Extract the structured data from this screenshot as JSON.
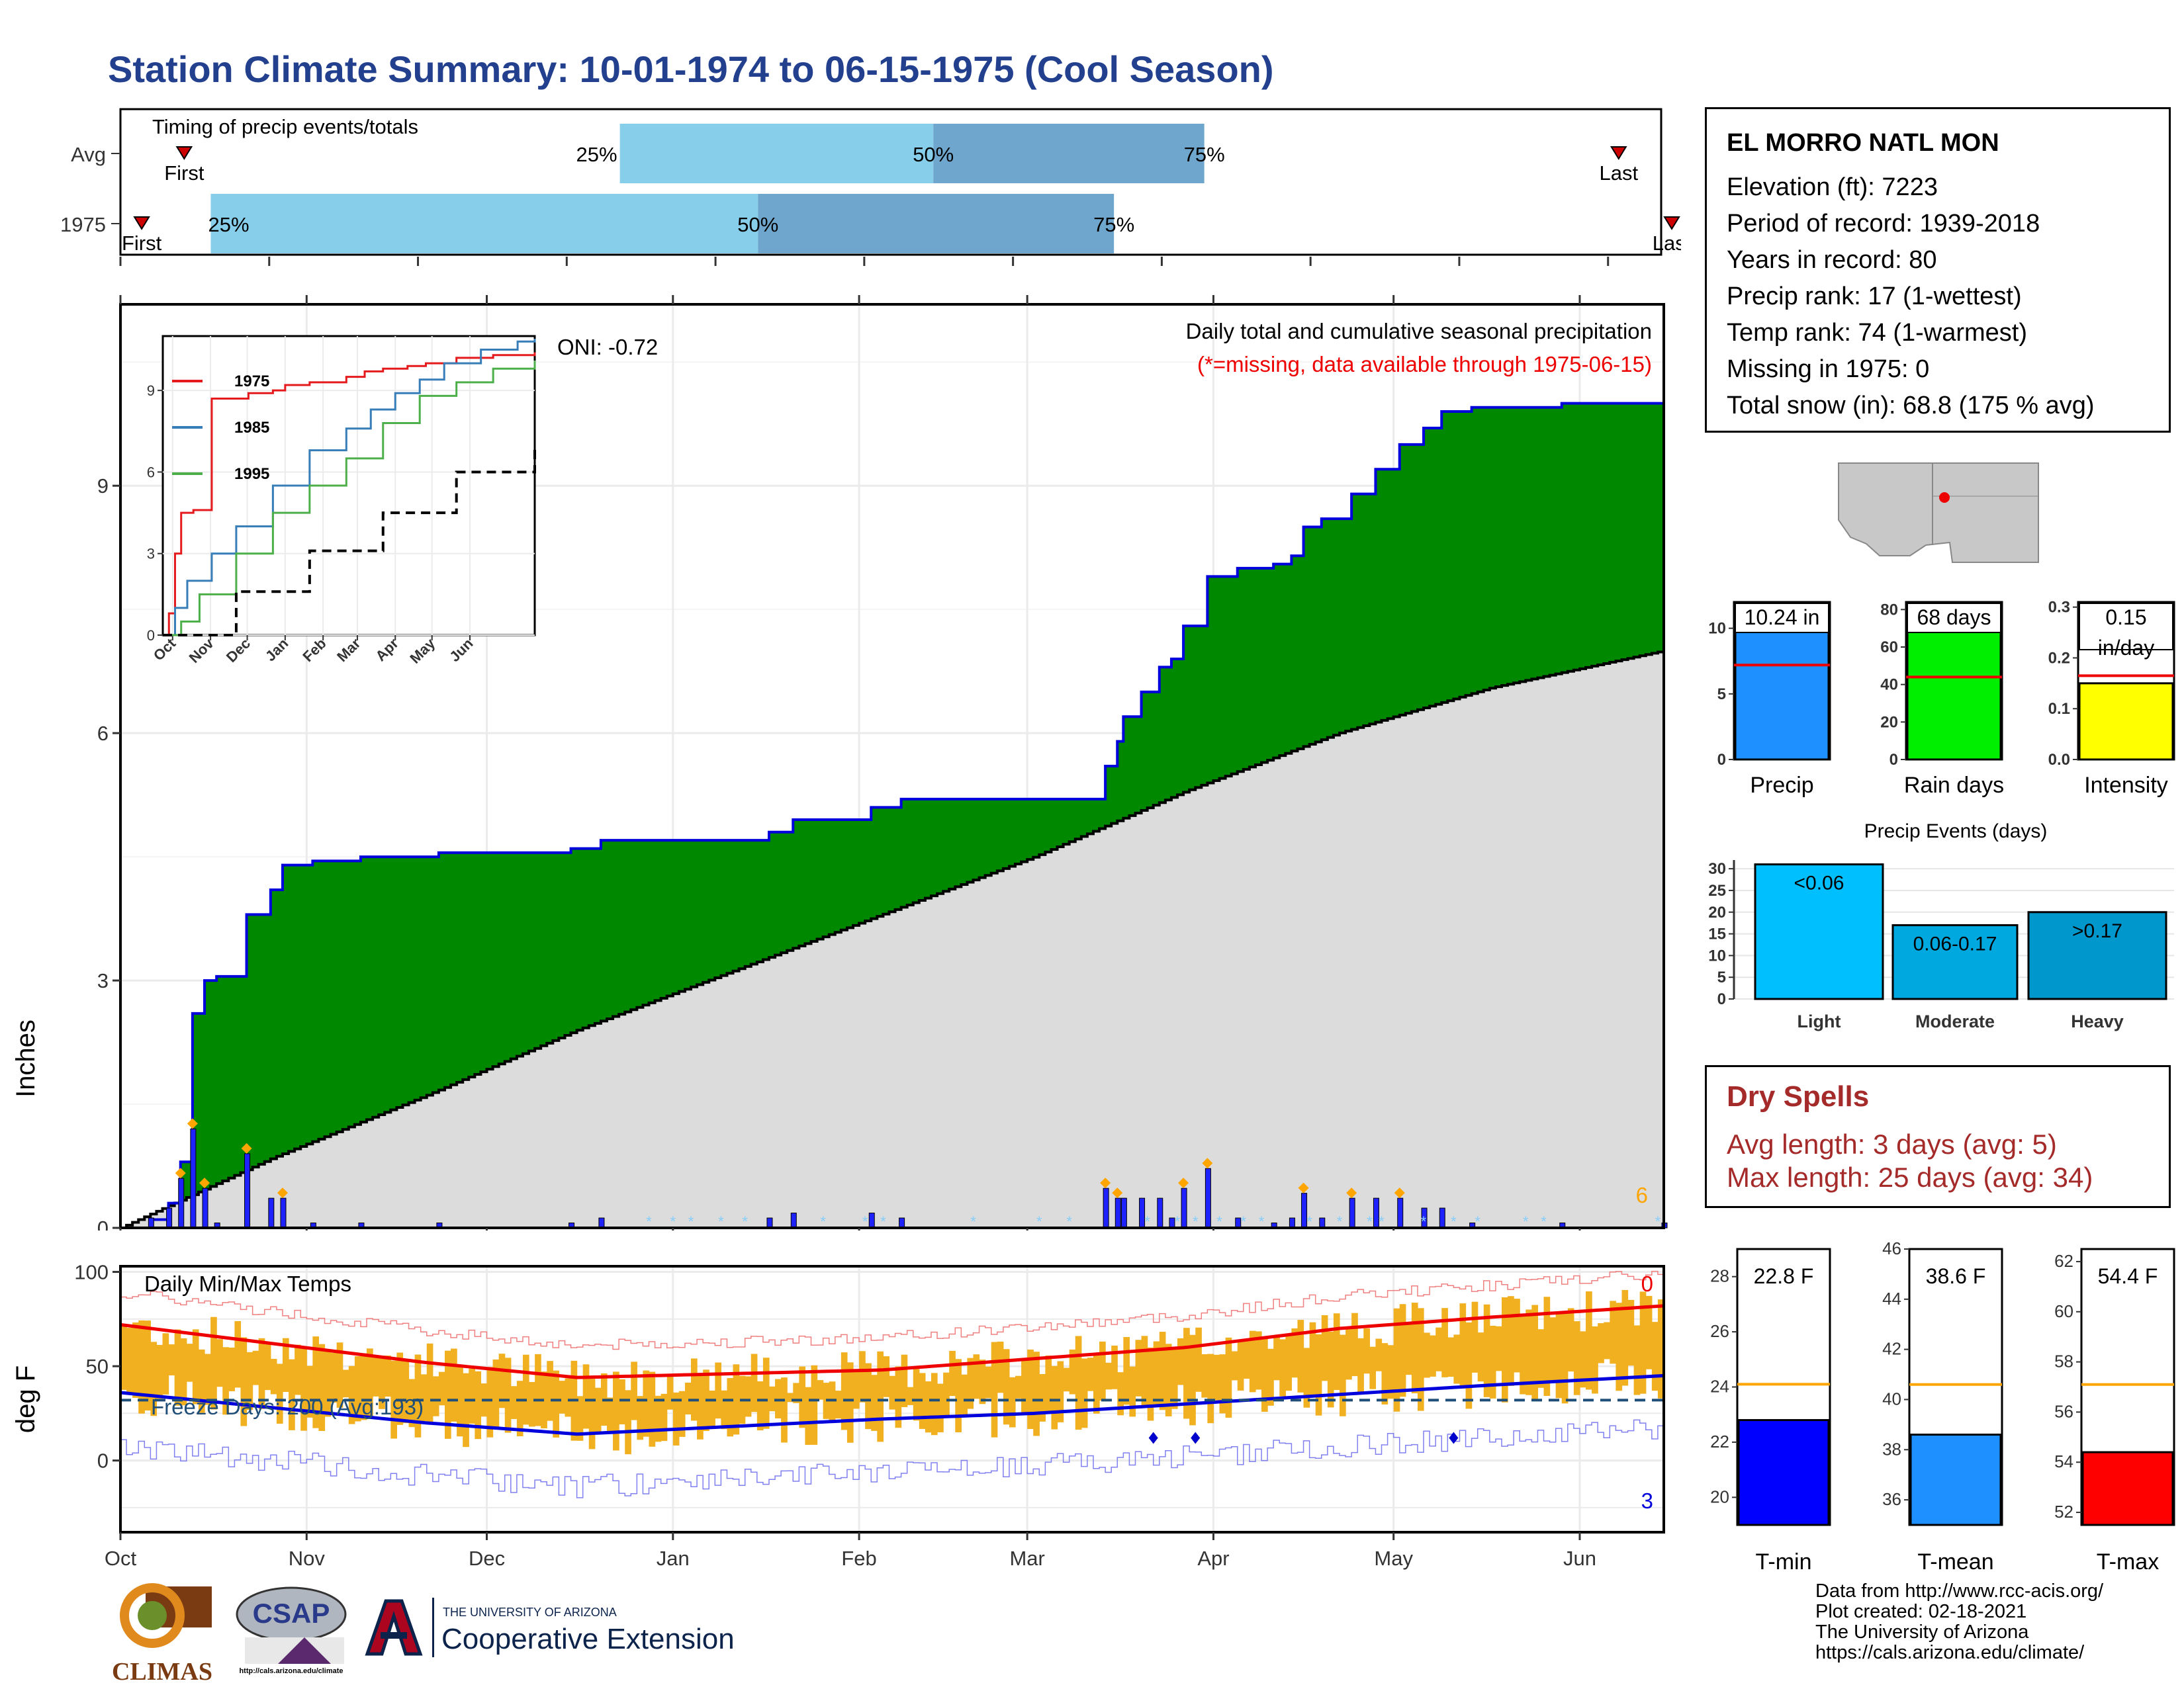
{
  "page": {
    "title": "Station Climate Summary: 10-01-1974 to 06-15-1975 (Cool Season)"
  },
  "timing": {
    "title": "Timing of precip events/totals",
    "rows": [
      {
        "label": "Avg",
        "first": "First",
        "last": "Last",
        "p25": "25%",
        "p50": "50%",
        "p75": "75%",
        "first_doy": 12,
        "p25_doy": 94,
        "p50_doy": 153,
        "p75_doy": 204,
        "last_doy": 282
      },
      {
        "label": "1975",
        "first": "First",
        "last": "Last",
        "p25": "25%",
        "p50": "50%",
        "p75": "75%",
        "first_doy": 4,
        "p25_doy": 17,
        "p50_doy": 120,
        "p75_doy": 187,
        "last_doy": 292
      }
    ],
    "colors": {
      "q1": "#87ceeb",
      "q2": "#6ea6cd",
      "marker": "#cc0000"
    }
  },
  "precip": {
    "ylabel": "Inches",
    "title": "Daily total and cumulative seasonal precipitation",
    "missing_note": "(*=missing, data available through 1975-06-15)",
    "oni": "ONI: -0.72",
    "count_label": "6",
    "yticks": [
      "0",
      "3",
      "6",
      "9"
    ],
    "colors": {
      "fill": "#008800",
      "line": "#0000dd",
      "normal": "#dcdcdc",
      "daily": "#1e22ff",
      "missing": "#87cefa",
      "diamond": "#ffa500"
    }
  },
  "inset": {
    "yticks": [
      "0",
      "3",
      "6",
      "9"
    ],
    "xticks": [
      "Oct",
      "Nov",
      "Dec",
      "Jan",
      "Feb",
      "Mar",
      "Apr",
      "May",
      "Jun"
    ],
    "legend": [
      {
        "name": "1975",
        "color": "#e41a1c"
      },
      {
        "name": "1985",
        "color": "#377eb8"
      },
      {
        "name": "1995",
        "color": "#4daf4a"
      }
    ]
  },
  "temp": {
    "ylabel": "deg F",
    "title": "Daily Min/Max Temps",
    "freeze": "Freeze Days: 200 (Avg:193)",
    "top_count": "0",
    "bottom_count": "3",
    "yticks": [
      "0",
      "50",
      "100"
    ],
    "xticks": [
      "Oct",
      "Nov",
      "Dec",
      "Jan",
      "Feb",
      "Mar",
      "Apr",
      "May",
      "Jun"
    ],
    "colors": {
      "bar": "#f0b020",
      "max": "#ee0000",
      "min": "#0000dd",
      "freeze": "#1f4e79"
    }
  },
  "station": {
    "name": "EL MORRO NATL MON",
    "lines": [
      "Elevation (ft): 7223",
      "Period of record: 1939-2018",
      "Years in record: 80",
      "Precip rank: 17 (1-wettest)",
      "Temp rank: 74 (1-warmest)",
      "Missing in 1975: 0",
      "Total snow (in): 68.8 (175 % avg)"
    ]
  },
  "summary_bars": [
    {
      "label": "Precip",
      "value_text": "10.24 in",
      "value": 10.24,
      "avg": 7.2,
      "ymax": 12,
      "ticks": [
        "0",
        "5",
        "10"
      ],
      "tickvals": [
        0,
        5,
        10
      ],
      "color": "#1e90ff"
    },
    {
      "label": "Rain days",
      "value_text": "68 days",
      "value": 68,
      "avg": 44,
      "ymax": 84,
      "ticks": [
        "0",
        "20",
        "40",
        "60",
        "80"
      ],
      "tickvals": [
        0,
        20,
        40,
        60,
        80
      ],
      "color": "#00ee00"
    },
    {
      "label": "Intensity",
      "value_text": "0.15",
      "value_text2": "in/day",
      "value": 0.15,
      "avg": 0.165,
      "ymax": 0.31,
      "ticks": [
        "0.0",
        "0.1",
        "0.2",
        "0.3"
      ],
      "tickvals": [
        0,
        0.1,
        0.2,
        0.3
      ],
      "color": "#ffff00"
    }
  ],
  "events": {
    "title": "Precip Events (days)",
    "ticks": [
      "0",
      "5",
      "10",
      "15",
      "20",
      "25",
      "30"
    ],
    "bars": [
      {
        "label": "Light",
        "range": "<0.06",
        "value": 31,
        "color": "#00bfff"
      },
      {
        "label": "Moderate",
        "range": "0.06-0.17",
        "value": 17,
        "color": "#00a8e0"
      },
      {
        "label": "Heavy",
        "range": ">0.17",
        "value": 20,
        "color": "#0098cc"
      }
    ]
  },
  "dry_spells": {
    "title": "Dry Spells",
    "avg": "Avg length: 3 days (avg: 5)",
    "max": "Max length: 25 days (avg: 34)"
  },
  "temp_bars": [
    {
      "label": "T-min",
      "value_text": "22.8 F",
      "value": 22.8,
      "avg": 24.1,
      "ymin": 19,
      "ymax": 29,
      "ticks": [
        "20",
        "22",
        "24",
        "26",
        "28"
      ],
      "tickvals": [
        20,
        22,
        24,
        26,
        28
      ],
      "color": "#0000ff"
    },
    {
      "label": "T-mean",
      "value_text": "38.6 F",
      "value": 38.6,
      "avg": 40.6,
      "ymin": 35,
      "ymax": 46,
      "ticks": [
        "36",
        "38",
        "40",
        "42",
        "44",
        "46"
      ],
      "tickvals": [
        36,
        38,
        40,
        42,
        44,
        46
      ],
      "color": "#1e90ff"
    },
    {
      "label": "T-max",
      "value_text": "54.4 F",
      "value": 54.4,
      "avg": 57.1,
      "ymin": 51.5,
      "ymax": 62.5,
      "ticks": [
        "52",
        "54",
        "56",
        "58",
        "60",
        "62"
      ],
      "tickvals": [
        52,
        54,
        56,
        58,
        60,
        62
      ],
      "color": "#ff0000"
    }
  ],
  "footer": {
    "logo_climas": "CLIMAS",
    "logo_csap": "CSAP",
    "csap_url": "http://cals.arizona.edu/climate",
    "ua_top": "THE UNIVERSITY OF ARIZONA",
    "ua_bottom": "Cooperative Extension",
    "credits": [
      "Data from http://www.rcc-acis.org/",
      "Plot created: 02-18-2021",
      "The University of Arizona",
      "https://cals.arizona.edu/climate/"
    ]
  },
  "chart_data": [
    {
      "type": "area",
      "title": "Daily total and cumulative seasonal precipitation",
      "ylabel": "Inches",
      "ylim": [
        0,
        11.2
      ],
      "x_axis": [
        "Oct",
        "Nov",
        "Dec",
        "Jan",
        "Feb",
        "Mar",
        "Apr",
        "May",
        "Jun"
      ],
      "series": [
        {
          "name": "1975",
          "x_day": [
            0,
            5,
            8,
            10,
            12,
            14,
            16,
            18,
            21,
            25,
            27,
            32,
            40,
            53,
            75,
            80,
            108,
            112,
            125,
            130,
            164,
            166,
            167,
            170,
            173,
            175,
            177,
            181,
            186,
            192,
            195,
            197,
            200,
            205,
            209,
            213,
            217,
            220,
            225,
            240,
            257,
            285,
            290,
            300,
            304
          ],
          "values": [
            0,
            0.1,
            0.3,
            0.8,
            2.6,
            3.0,
            3.05,
            3.05,
            3.8,
            4.1,
            4.4,
            4.45,
            4.5,
            4.55,
            4.6,
            4.7,
            4.8,
            4.95,
            5.1,
            5.2,
            5.6,
            5.9,
            6.2,
            6.5,
            6.8,
            6.9,
            7.3,
            7.9,
            8.0,
            8.05,
            8.15,
            8.5,
            8.6,
            8.9,
            9.2,
            9.5,
            9.7,
            9.9,
            9.95,
            10.0,
            10.05,
            10.1,
            10.15,
            10.24,
            10.24
          ]
        },
        {
          "name": "Normal",
          "x_day": [
            0,
            30,
            60,
            90,
            120,
            150,
            180,
            210,
            240,
            270,
            304
          ],
          "values": [
            0,
            0.85,
            1.6,
            2.4,
            3.1,
            3.8,
            4.5,
            5.3,
            6.0,
            6.55,
            7.0
          ]
        }
      ]
    },
    {
      "type": "line",
      "title": "",
      "x_axis": [
        "Oct",
        "Nov",
        "Dec",
        "Jan",
        "Feb",
        "Mar",
        "Apr",
        "May",
        "Jun"
      ],
      "ylim": [
        0,
        11
      ],
      "series": [
        {
          "name": "1975",
          "x_day": [
            0,
            5,
            10,
            15,
            25,
            40,
            70,
            90,
            100,
            120,
            150,
            165,
            180,
            200,
            215,
            240,
            270,
            304
          ],
          "values": [
            0,
            0.8,
            3.0,
            4.5,
            4.6,
            8.7,
            8.9,
            9.0,
            9.2,
            9.3,
            9.5,
            9.7,
            9.8,
            9.9,
            10.0,
            10.2,
            10.3,
            10.4
          ]
        },
        {
          "name": "1985",
          "x_day": [
            0,
            10,
            20,
            40,
            60,
            90,
            120,
            150,
            170,
            190,
            210,
            230,
            260,
            290,
            304
          ],
          "values": [
            0,
            1.0,
            2.0,
            3.0,
            4.0,
            5.5,
            6.8,
            7.6,
            8.3,
            8.9,
            9.4,
            10.0,
            10.5,
            10.8,
            10.9
          ]
        },
        {
          "name": "1995",
          "x_day": [
            0,
            15,
            30,
            60,
            90,
            120,
            150,
            180,
            210,
            240,
            270,
            304
          ],
          "values": [
            0,
            0.5,
            1.5,
            3.0,
            4.5,
            5.5,
            6.5,
            7.8,
            8.8,
            9.3,
            9.8,
            10.1
          ]
        },
        {
          "name": "Avg",
          "x_day": [
            0,
            60,
            120,
            180,
            240,
            304
          ],
          "values": [
            0,
            1.6,
            3.1,
            4.5,
            6.0,
            7.0
          ]
        }
      ]
    },
    {
      "type": "bar",
      "title": "Daily Min/Max Temps",
      "ylabel": "deg F",
      "ylim": [
        -38,
        103
      ],
      "x_axis": [
        "Oct",
        "Nov",
        "Dec",
        "Jan",
        "Feb",
        "Mar",
        "Apr",
        "May",
        "Jun"
      ],
      "series": [
        {
          "name": "Avg max",
          "x_day": [
            0,
            30,
            60,
            90,
            120,
            150,
            180,
            210,
            240,
            270,
            304
          ],
          "values": [
            72,
            62,
            52,
            44,
            46,
            48,
            54,
            60,
            70,
            76,
            82
          ]
        },
        {
          "name": "Avg min",
          "x_day": [
            0,
            30,
            60,
            90,
            120,
            150,
            180,
            210,
            240,
            270,
            304
          ],
          "values": [
            36,
            28,
            20,
            14,
            18,
            22,
            25,
            30,
            35,
            40,
            45
          ]
        },
        {
          "name": "Freeze line",
          "x_day": [
            0,
            304
          ],
          "values": [
            32,
            32
          ]
        }
      ]
    },
    {
      "type": "bar",
      "title": "Precip Events (days)",
      "categories": [
        "Light",
        "Moderate",
        "Heavy"
      ],
      "values": [
        31,
        17,
        20
      ]
    },
    {
      "type": "bar",
      "categories": [
        "Precip",
        "Rain days",
        "Intensity"
      ],
      "values": [
        10.24,
        68,
        0.15
      ]
    },
    {
      "type": "bar",
      "categories": [
        "T-min",
        "T-mean",
        "T-max"
      ],
      "values": [
        22.8,
        38.6,
        54.4
      ]
    }
  ]
}
